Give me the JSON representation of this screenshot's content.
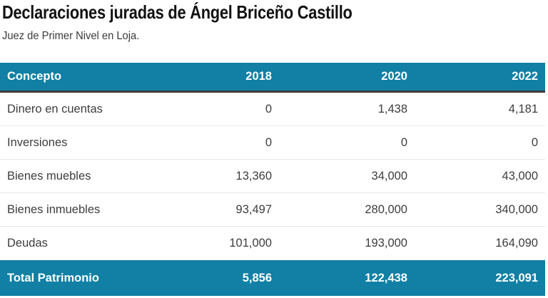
{
  "header": {
    "title": "Declaraciones juradas de Ángel Briceño Castillo",
    "subtitle": "Juez de Primer Nivel en Loja."
  },
  "table": {
    "columns": [
      "Concepto",
      "2018",
      "2020",
      "2022"
    ],
    "rows": [
      {
        "concept": "Dinero en cuentas",
        "y2018": "0",
        "y2020": "1,438",
        "y2022": "4,181"
      },
      {
        "concept": "Inversiones",
        "y2018": "0",
        "y2020": "0",
        "y2022": "0"
      },
      {
        "concept": "Bienes muebles",
        "y2018": "13,360",
        "y2020": "34,000",
        "y2022": "43,000"
      },
      {
        "concept": "Bienes inmuebles",
        "y2018": "93,497",
        "y2020": "280,000",
        "y2022": "340,000"
      },
      {
        "concept": "Deudas",
        "y2018": "101,000",
        "y2020": "193,000",
        "y2022": "164,090"
      }
    ],
    "total_row": {
      "concept": "Total Patrimonio",
      "y2018": "5,856",
      "y2020": "122,438",
      "y2022": "223,091"
    }
  },
  "colors": {
    "accent_teal": "#1180A4",
    "header_border_dark": "#3B3B3B",
    "row_separator": "#E8E8E8",
    "body_text": "#3D3D3D",
    "title_text": "#121212"
  },
  "chart_data": {
    "type": "table",
    "title": "Declaraciones juradas de Ángel Briceño Castillo",
    "subtitle": "Juez de Primer Nivel en Loja.",
    "columns": [
      "Concepto",
      "2018",
      "2020",
      "2022"
    ],
    "rows": [
      [
        "Dinero en cuentas",
        0,
        1438,
        4181
      ],
      [
        "Inversiones",
        0,
        0,
        0
      ],
      [
        "Bienes muebles",
        13360,
        34000,
        43000
      ],
      [
        "Bienes inmuebles",
        93497,
        280000,
        340000
      ],
      [
        "Deudas",
        101000,
        193000,
        164090
      ],
      [
        "Total Patrimonio",
        5856,
        122438,
        223091
      ]
    ],
    "layout_hints": {
      "header_style": "teal background, white bold text, numeric columns right-aligned",
      "total_row_style": "teal background, white bold text"
    }
  }
}
